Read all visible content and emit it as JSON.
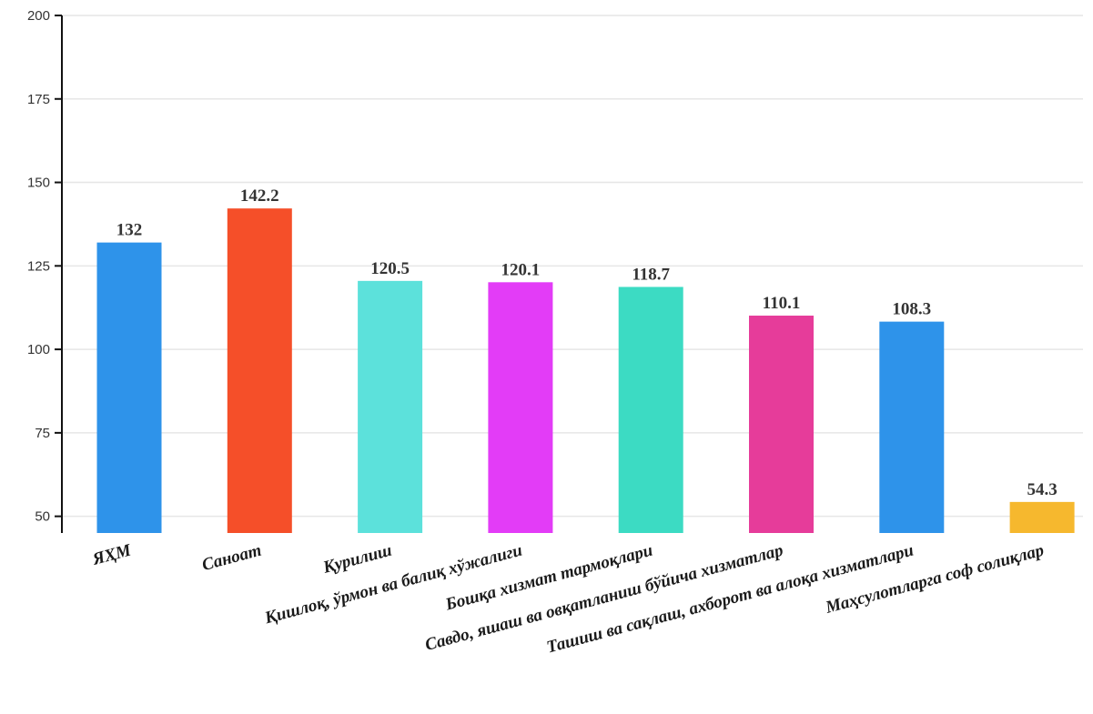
{
  "chart_data": {
    "type": "bar",
    "title": "",
    "xlabel": "",
    "ylabel": "",
    "categories": [
      "ЯҲМ",
      "Саноат",
      "Қурилиш",
      "Қишлоқ, ўрмон ва балиқ хўжалиги",
      "Бошқа хизмат тармоқлари",
      "Савдо, яшаш ва овқатланиш бўйича хизматлар",
      "Ташиш ва сақлаш, ахборот ва алоқа хизматлари",
      "Маҳсулотларга соф солиқлар"
    ],
    "values": [
      132,
      142.2,
      120.5,
      120.1,
      118.7,
      110.1,
      108.3,
      54.3
    ],
    "data_labels": [
      "132",
      "142.2",
      "120.5",
      "120.1",
      "118.7",
      "110.1",
      "108.3",
      "54.3"
    ],
    "colors": [
      "#2e93ea",
      "#f54f29",
      "#5ce1db",
      "#e33cf7",
      "#3cdbc3",
      "#e63c9a",
      "#2e93ea",
      "#f6b82e"
    ],
    "ylim": [
      45,
      200
    ],
    "yticks": [
      50,
      75,
      100,
      125,
      150,
      175,
      200
    ],
    "ytick_labels": [
      "50",
      "75",
      "100",
      "125",
      "150",
      "175",
      "200"
    ],
    "grid": true,
    "legend": "none"
  }
}
